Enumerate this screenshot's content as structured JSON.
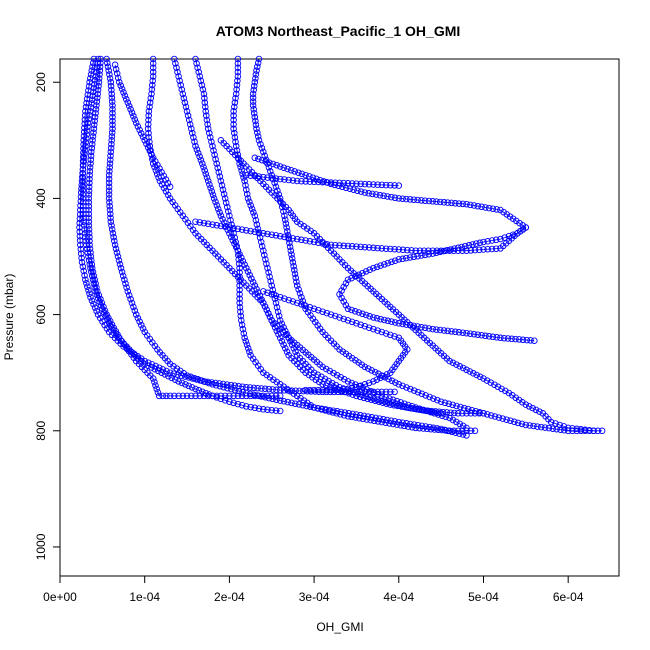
{
  "chart_data": {
    "type": "scatter",
    "title": "ATOM3 Northeast_Pacific_1 OH_GMI",
    "xlabel": "OH_GMI",
    "ylabel": "Pressure (mbar)",
    "xlim": [
      0,
      0.00066
    ],
    "ylim": [
      1050,
      160
    ],
    "y_reversed": true,
    "grid": false,
    "legend": "none",
    "x_ticks": [
      0,
      0.0001,
      0.0002,
      0.0003,
      0.0004,
      0.0005,
      0.0006
    ],
    "x_tick_labels": [
      "0e+00",
      "1e-04",
      "2e-04",
      "3e-04",
      "4e-04",
      "5e-04",
      "6e-04"
    ],
    "y_ticks": [
      200,
      400,
      600,
      800,
      1000
    ],
    "y_tick_labels": [
      "200",
      "400",
      "600",
      "800",
      "1000"
    ],
    "marker": "open-circle",
    "color": "#0000ff",
    "series": [
      {
        "x": [
          4.5e-05,
          4.2e-05,
          3.8e-05,
          3.3e-05,
          3e-05,
          2.7e-05,
          2.5e-05,
          2.4e-05,
          2.3e-05,
          2.4e-05,
          2.6e-05,
          3e-05,
          3.6e-05,
          4.5e-05,
          5.8e-05,
          7.5e-05,
          0.0001,
          0.00013,
          0.00017,
          0.00022,
          0.00026,
          0.00031,
          0.00036,
          0.000395
        ],
        "y": [
          160,
          190,
          230,
          270,
          310,
          350,
          390,
          420,
          450,
          480,
          510,
          540,
          570,
          600,
          630,
          655,
          680,
          700,
          715,
          725,
          730,
          733,
          733,
          733
        ]
      },
      {
        "x": [
          4.8e-05,
          4.6e-05,
          4.3e-05,
          4e-05,
          3.7e-05,
          3.5e-05,
          3.4e-05,
          3.4e-05,
          3.5e-05,
          3.8e-05,
          4.4e-05,
          5.5e-05,
          7e-05,
          9e-05,
          0.00011,
          0.000117,
          0.00013,
          0.00016,
          0.0002,
          0.00024,
          0.00026
        ],
        "y": [
          160,
          200,
          240,
          280,
          320,
          360,
          400,
          440,
          480,
          520,
          560,
          600,
          640,
          680,
          710,
          740,
          740,
          740,
          740,
          740,
          740
        ]
      },
      {
        "x": [
          5.5e-05,
          6e-05,
          6.2e-05,
          6.2e-05,
          6e-05,
          5.8e-05,
          5.8e-05,
          6e-05,
          6.5e-05,
          7.2e-05,
          8e-05,
          9e-05,
          0.0001,
          0.000115,
          0.00013,
          0.00015,
          0.00018,
          0.00022,
          0.00026,
          0.0003,
          0.00035,
          0.0004,
          0.00045,
          0.00048
        ],
        "y": [
          160,
          200,
          240,
          280,
          320,
          360,
          400,
          440,
          480,
          520,
          560,
          600,
          630,
          660,
          685,
          705,
          720,
          735,
          748,
          760,
          772,
          785,
          797,
          808
        ]
      },
      {
        "x": [
          4e-05,
          3.5e-05,
          3e-05,
          2.8e-05,
          2.7e-05,
          2.7e-05,
          2.8e-05,
          3.1e-05,
          3.6e-05,
          4.2e-05,
          5e-05,
          6e-05,
          7.2e-05,
          8.5e-05,
          0.0001,
          0.00012,
          0.00014,
          0.00016,
          0.00018,
          0.0002,
          0.00022,
          0.00024,
          0.00026
        ],
        "y": [
          160,
          200,
          250,
          300,
          350,
          400,
          440,
          480,
          520,
          560,
          590,
          620,
          645,
          665,
          685,
          700,
          715,
          728,
          740,
          750,
          758,
          763,
          766
        ]
      },
      {
        "x": [
          0.00011,
          0.00011,
          0.000108,
          0.000105,
          0.000104,
          0.000106,
          0.00011,
          0.000118,
          0.00013,
          0.000145,
          0.00016,
          0.00018,
          0.0002,
          0.00022,
          0.00024,
          0.00025,
          0.00026,
          0.00027,
          0.00029,
          0.00031,
          0.00035,
          0.00039,
          0.00043,
          0.00047,
          0.0005
        ],
        "y": [
          160,
          190,
          220,
          250,
          280,
          310,
          340,
          370,
          400,
          430,
          460,
          490,
          520,
          550,
          580,
          610,
          640,
          670,
          700,
          720,
          740,
          755,
          765,
          770,
          770
        ]
      },
      {
        "x": [
          0.000135,
          0.00014,
          0.000145,
          0.00015,
          0.000155,
          0.00016,
          0.000168,
          0.000175,
          0.000182,
          0.00019,
          0.0002,
          0.00021,
          0.00022,
          0.00023,
          0.00024,
          0.00025,
          0.00027,
          0.00029,
          0.00031,
          0.00034,
          0.00038,
          0.00042,
          0.00046,
          0.00048
        ],
        "y": [
          160,
          190,
          220,
          250,
          280,
          310,
          340,
          370,
          400,
          430,
          460,
          490,
          520,
          550,
          580,
          610,
          640,
          665,
          690,
          715,
          740,
          760,
          778,
          795
        ]
      },
      {
        "x": [
          0.00016,
          0.000165,
          0.00017,
          0.000172,
          0.000175,
          0.00018,
          0.000185,
          0.00019,
          0.000195,
          0.0002,
          0.000205,
          0.00021,
          0.000212,
          0.000212,
          0.000212,
          0.000214,
          0.000218,
          0.000225,
          0.00024,
          0.00026,
          0.00028,
          0.0003,
          0.00034,
          0.00038,
          0.00042,
          0.00046,
          0.00049
        ],
        "y": [
          160,
          190,
          220,
          250,
          280,
          310,
          340,
          370,
          400,
          430,
          460,
          490,
          520,
          550,
          580,
          610,
          640,
          670,
          700,
          720,
          740,
          760,
          775,
          785,
          795,
          800,
          800
        ]
      },
      {
        "x": [
          0.00021,
          0.00021,
          0.000208,
          0.000205,
          0.000205,
          0.000208,
          0.000212,
          0.000218,
          0.000222,
          0.00023,
          0.000235,
          0.00024,
          0.000245,
          0.00025,
          0.000255,
          0.00026,
          0.00027,
          0.00028,
          0.0003,
          0.00033,
          0.00037,
          0.00041,
          0.00045
        ],
        "y": [
          160,
          190,
          220,
          250,
          280,
          310,
          340,
          370,
          400,
          430,
          460,
          490,
          520,
          550,
          580,
          610,
          640,
          670,
          700,
          725,
          745,
          760,
          770
        ]
      },
      {
        "x": [
          0.000235,
          0.000232,
          0.00023,
          0.000228,
          0.000228,
          0.00023,
          0.000232,
          0.000235,
          0.00024,
          0.000245,
          0.00025,
          0.000255,
          0.00026,
          0.000265,
          0.00027,
          0.000275,
          0.00028,
          0.00029,
          0.00031,
          0.00033,
          0.00036,
          0.0004,
          0.00045,
          0.0005,
          0.00055,
          0.0006,
          0.00064
        ],
        "y": [
          160,
          180,
          200,
          220,
          240,
          260,
          280,
          300,
          320,
          340,
          360,
          380,
          400,
          430,
          470,
          510,
          550,
          590,
          630,
          660,
          690,
          720,
          750,
          770,
          790,
          800,
          800
        ]
      },
      {
        "x": [
          0.00019,
          0.0002,
          0.00021,
          0.00022,
          0.00023,
          0.00024,
          0.00025,
          0.00026,
          0.00027,
          0.00028,
          0.0003,
          0.00032,
          0.00034,
          0.00037,
          0.0004,
          0.00043,
          0.00046,
          0.0005,
          0.00053,
          0.00055,
          0.00057,
          0.00058,
          0.0006,
          0.00063
        ],
        "y": [
          300,
          315,
          330,
          345,
          360,
          375,
          390,
          405,
          420,
          440,
          460,
          490,
          520,
          560,
          600,
          640,
          680,
          710,
          735,
          755,
          770,
          785,
          795,
          800
        ]
      },
      {
        "x": [
          0.00023,
          0.00026,
          0.00029,
          0.00032,
          0.00036,
          0.0004,
          0.00044,
          0.00048,
          0.00052,
          0.00055,
          0.00054,
          0.00052,
          0.0005,
          0.00047,
          0.00044,
          0.0004,
          0.00037,
          0.00034,
          0.00033,
          0.00034,
          0.00037,
          0.0004,
          0.00044,
          0.00048,
          0.00052,
          0.00056
        ],
        "y": [
          330,
          345,
          360,
          375,
          390,
          400,
          405,
          410,
          420,
          450,
          460,
          470,
          475,
          485,
          495,
          505,
          520,
          540,
          565,
          590,
          605,
          615,
          625,
          632,
          640,
          645
        ]
      },
      {
        "x": [
          0.00022,
          0.00025,
          0.00028,
          0.00031,
          0.00034,
          0.00037,
          0.0004
        ],
        "y": [
          360,
          365,
          370,
          372,
          374,
          376,
          378
        ]
      },
      {
        "x": [
          0.00016,
          0.00018,
          0.0002,
          0.00022,
          0.00024,
          0.00026,
          0.00028,
          0.0003,
          0.00032,
          0.00034,
          0.00036,
          0.00038,
          0.0004,
          0.00042,
          0.00044,
          0.00046,
          0.00048,
          0.0005,
          0.00052,
          0.00054,
          0.00055
        ],
        "y": [
          440,
          445,
          450,
          455,
          460,
          465,
          470,
          475,
          480,
          482,
          484,
          486,
          488,
          490,
          490,
          490,
          490,
          488,
          486,
          460,
          450
        ]
      },
      {
        "x": [
          0.00024,
          0.00026,
          0.00028,
          0.0003,
          0.00032,
          0.00034,
          0.00036,
          0.00038,
          0.0004,
          0.00041,
          0.0004,
          0.00039,
          0.00037,
          0.00035,
          0.00033,
          0.00031,
          0.0003,
          0.00029
        ],
        "y": [
          560,
          570,
          580,
          590,
          600,
          610,
          620,
          630,
          640,
          660,
          680,
          700,
          715,
          725,
          730,
          730,
          730,
          730
        ]
      },
      {
        "x": [
          6.5e-05,
          7e-05,
          8e-05,
          9e-05,
          0.0001,
          0.00011,
          0.00012,
          0.00013
        ],
        "y": [
          170,
          200,
          235,
          270,
          300,
          330,
          355,
          380
        ]
      }
    ]
  }
}
